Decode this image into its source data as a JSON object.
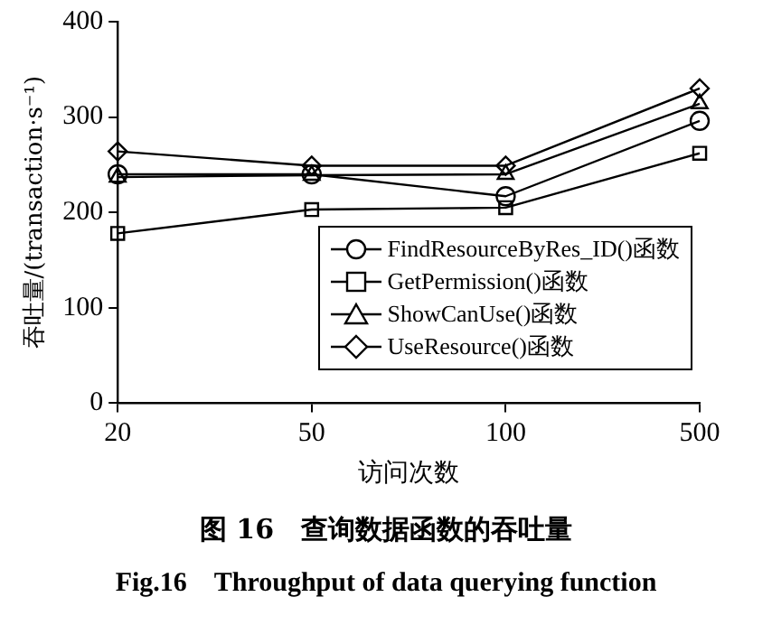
{
  "chart_data": {
    "type": "line",
    "title": "图 16　查询数据函数的吞吐量",
    "subtitle": "Fig.16　Throughput of data querying function",
    "xlabel": "访问次数",
    "ylabel": "吞吐量/(transaction·s⁻¹)",
    "categories": [
      "20",
      "50",
      "100",
      "500"
    ],
    "series": [
      {
        "name": "FindResourceByRes_ID()函数",
        "color": "#000000",
        "marker": "circle",
        "values": [
          240,
          240,
          217,
          296
        ]
      },
      {
        "name": "GetPermission()函数",
        "color": "#000000",
        "marker": "square",
        "values": [
          178,
          203,
          205,
          262
        ]
      },
      {
        "name": "ShowCanUse()函数",
        "color": "#000000",
        "marker": "triangle",
        "values": [
          237,
          239,
          240,
          314
        ]
      },
      {
        "name": "UseResource()函数",
        "color": "#000000",
        "marker": "diamond",
        "values": [
          264,
          249,
          249,
          330
        ]
      }
    ],
    "ylim": [
      0,
      400
    ],
    "yticks": [
      0,
      100,
      200,
      300,
      400
    ],
    "grid": false,
    "legend": "bottom right",
    "line_style": "solid"
  }
}
